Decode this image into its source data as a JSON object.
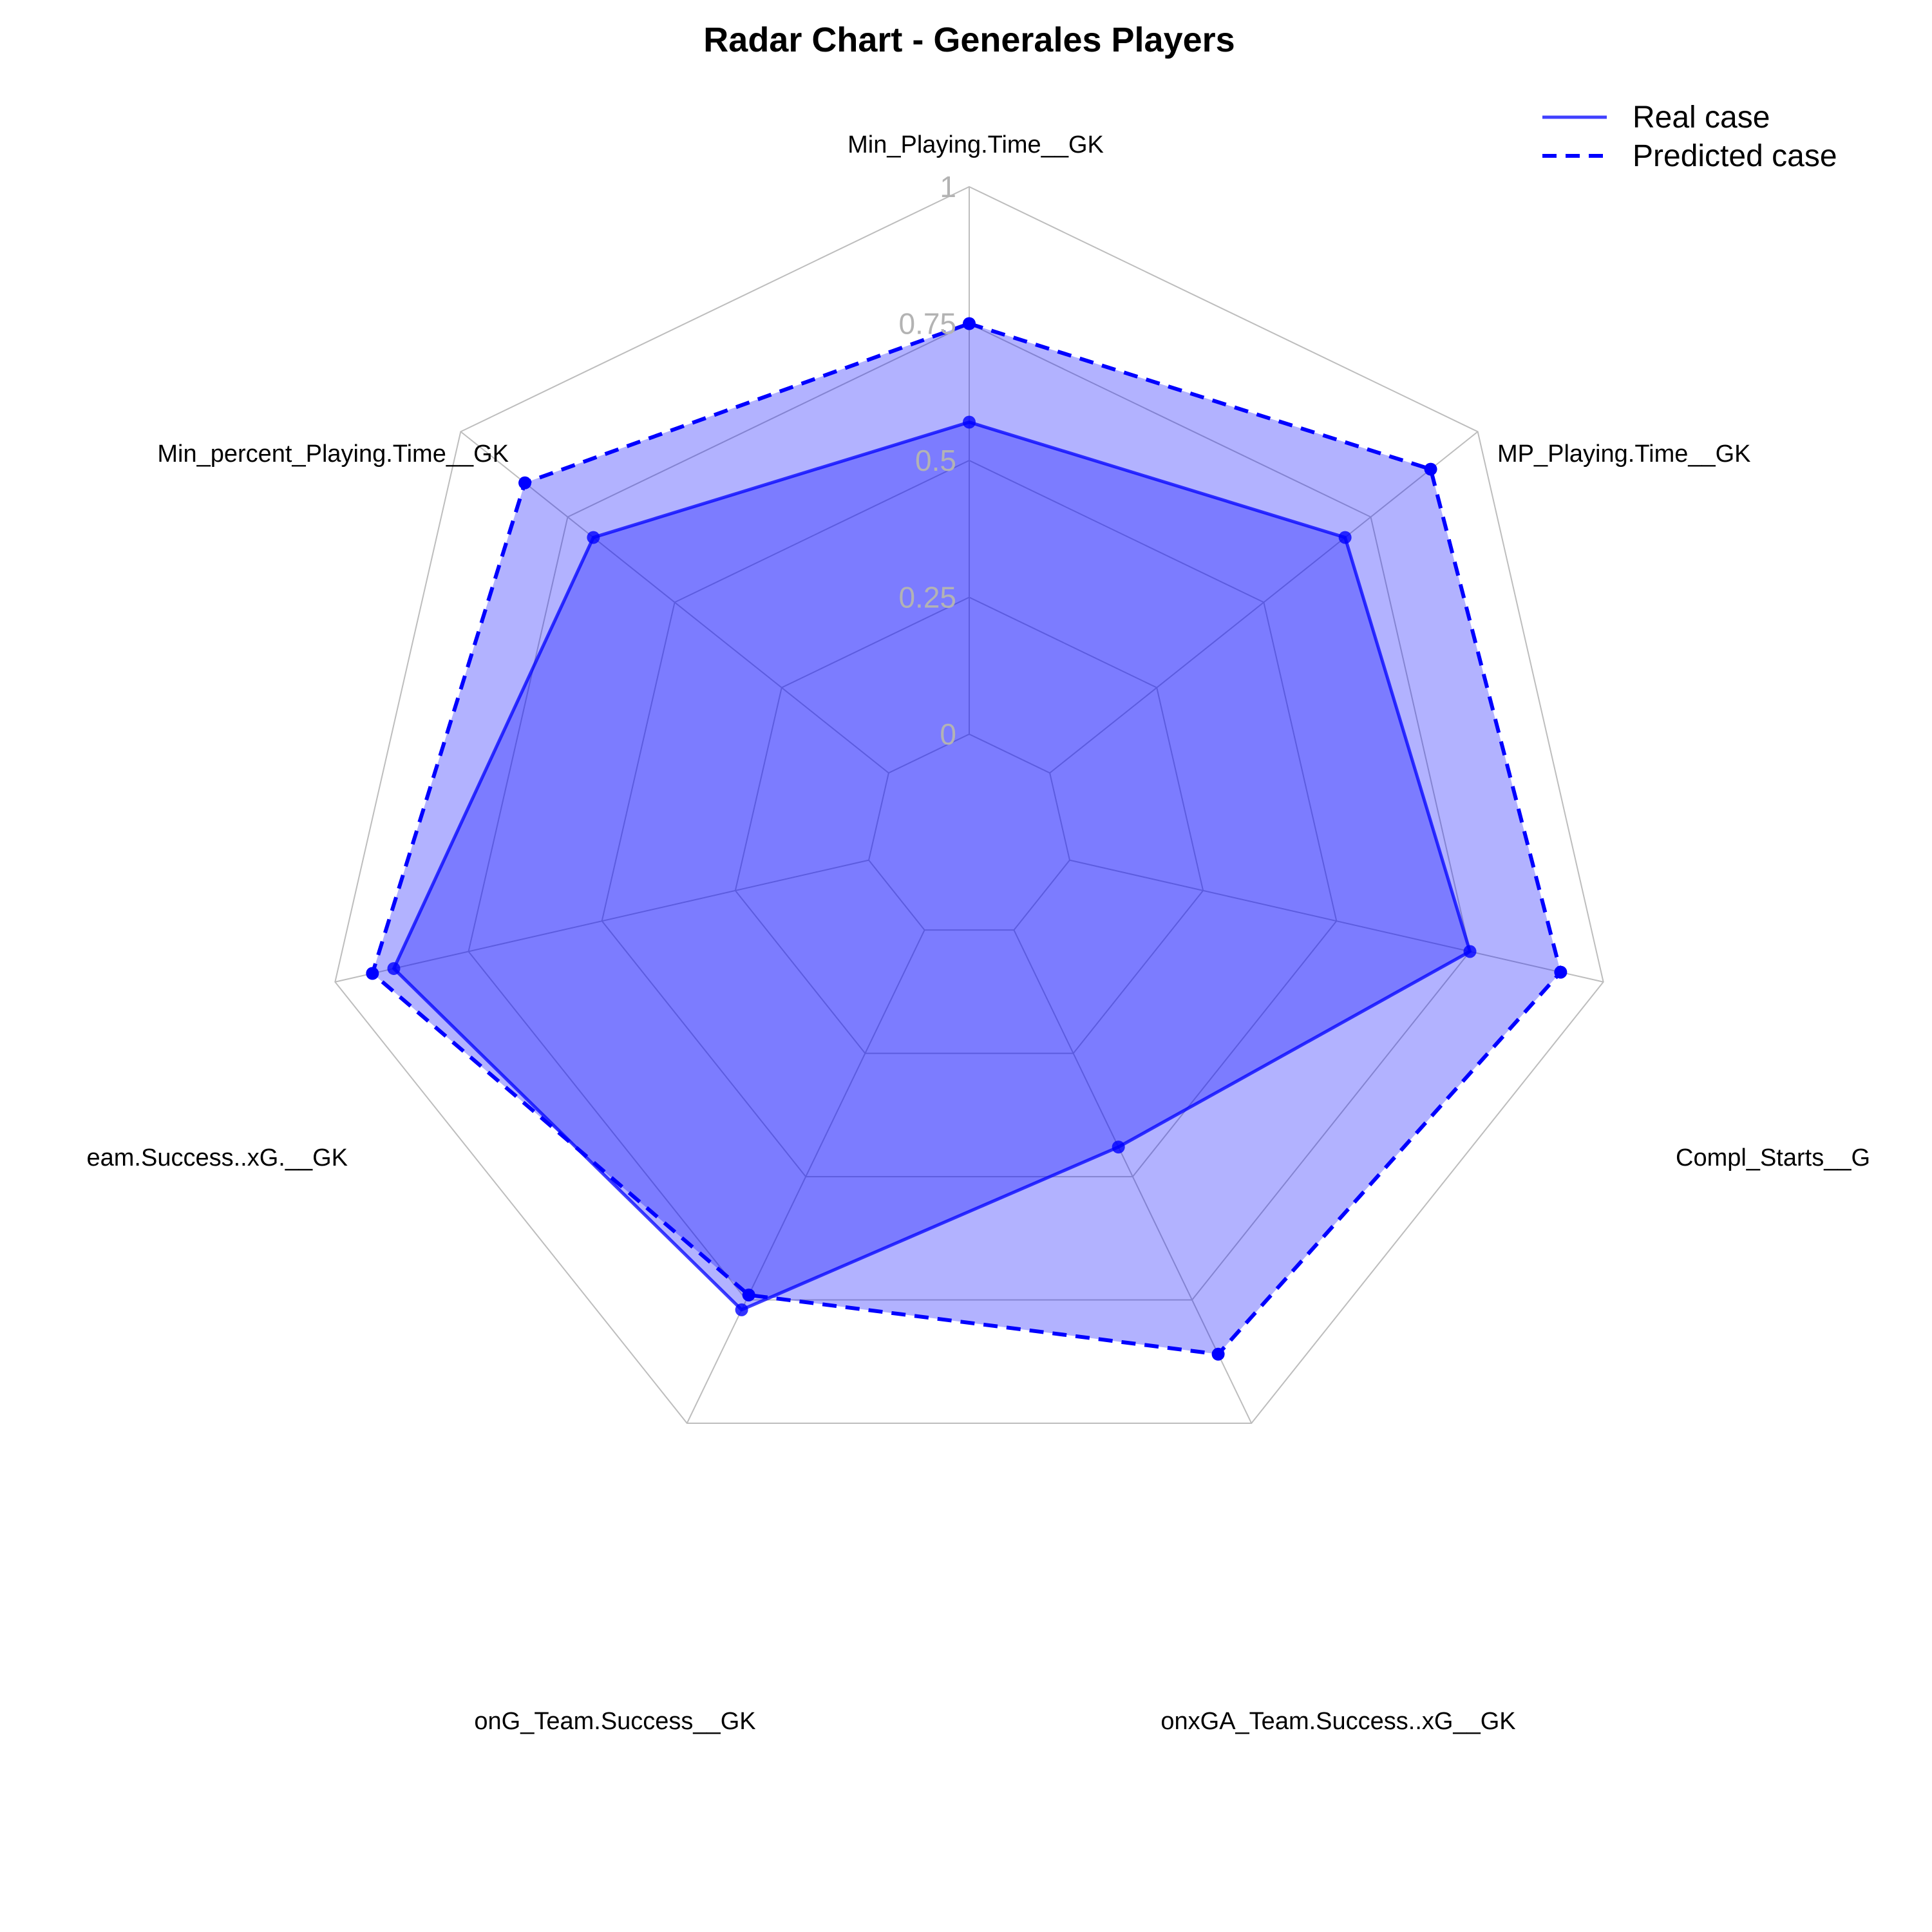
{
  "chart_data": {
    "type": "radar",
    "title": "Radar Chart - Generales Players",
    "axes": [
      "Min_Playing.Time__GK",
      "MP_Playing.Time__GK",
      "Compl_Starts__GK",
      "onxGA_Team.Success..xG__GK",
      "onG_Team.Success__GK",
      "onxG_Team.Success..xG.__GK",
      "Min_percent_Playing.Time__GK"
    ],
    "axis_label_display": [
      "Min_Playing.Time__GK",
      "MP_Playing.Time__GK",
      "Compl_Starts__G",
      "onxGA_Team.Success..xG__GK",
      "onG_Team.Success__GK",
      "eam.Success..xG.__GK",
      "Min_percent_Playing.Time__GK"
    ],
    "rlim": [
      0,
      1
    ],
    "ticks": [
      "0",
      "0.25",
      "0.5",
      "0.75",
      "1"
    ],
    "tick_values": [
      0,
      0.25,
      0.5,
      0.75,
      1
    ],
    "series": [
      {
        "name": "Real case",
        "values": [
          0.57,
          0.69,
          0.75,
          0.44,
          0.77,
          0.89,
          0.69
        ],
        "color": "#0000ff",
        "line": "solid",
        "fill": "#0000ff",
        "fill_opacity": 0.3
      },
      {
        "name": "Predicted case",
        "values": [
          0.75,
          0.89,
          0.92,
          0.86,
          0.74,
          0.93,
          0.85
        ],
        "color": "#0000ff",
        "line": "dashed",
        "fill": "#0000ff",
        "fill_opacity": 0.3
      }
    ],
    "grid": true,
    "legend_position": "top-right"
  }
}
